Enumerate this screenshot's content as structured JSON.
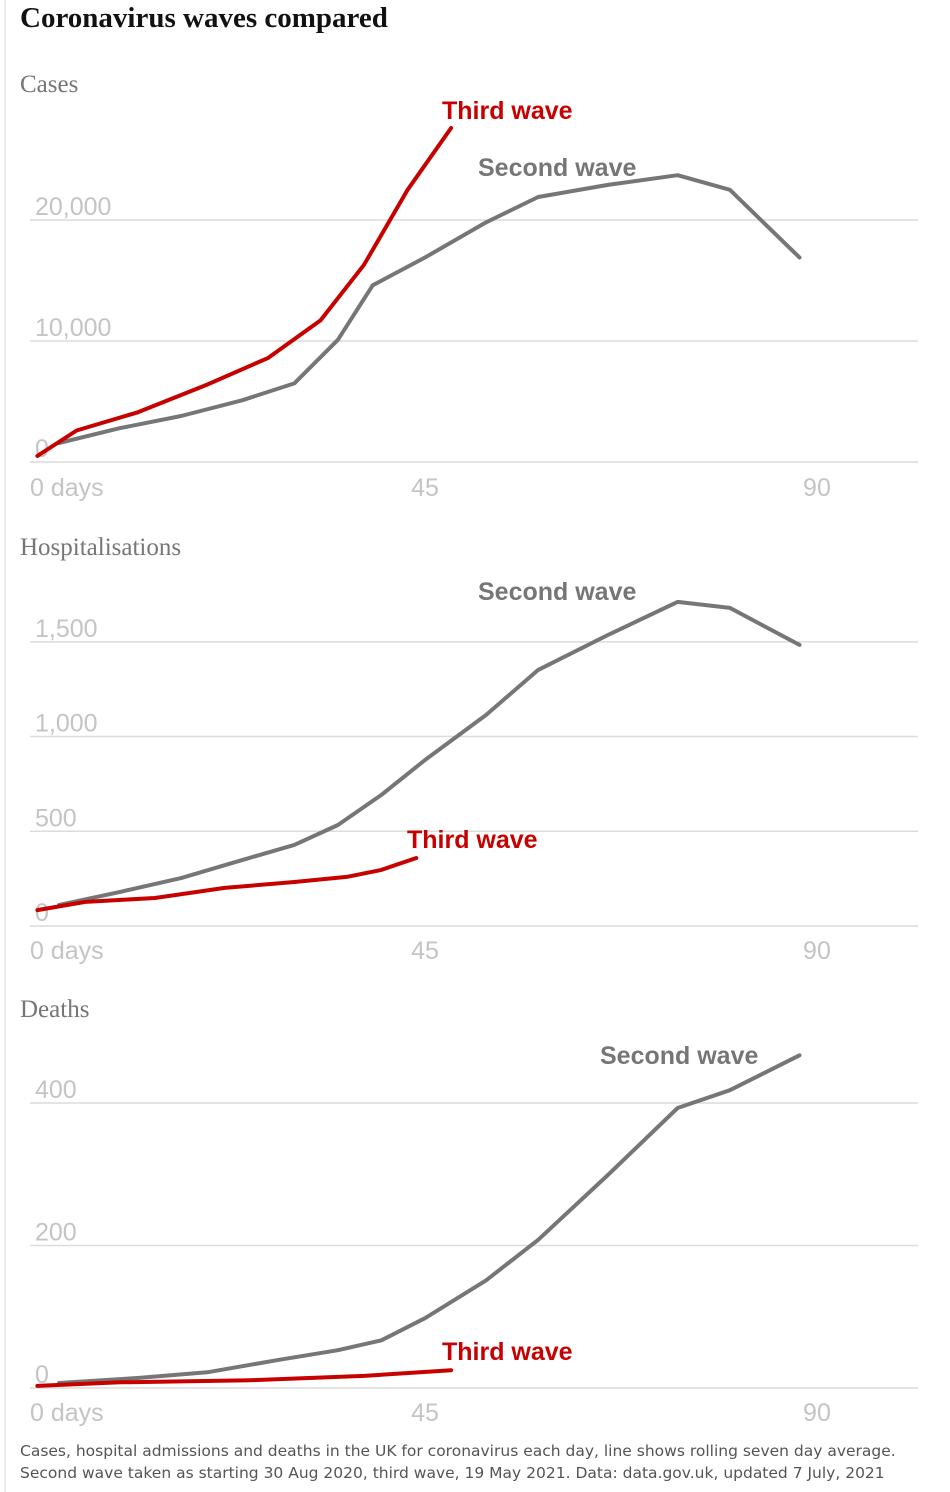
{
  "title": "Coronavirus waves compared",
  "note": "Cases, hospital admissions and deaths in the UK for coronavirus each day, line shows rolling seven day average. Second wave taken as starting 30 Aug 2020, third wave, 19 May 2021. Data: data.gov.uk, updated 7 July, 2021",
  "chart_data": [
    {
      "type": "line",
      "title": "Cases",
      "xlim": [
        0,
        101.6
      ],
      "xticks": [
        {
          "value": 0,
          "label": "0 days"
        },
        45,
        90
      ],
      "ylim": [
        0,
        30000
      ],
      "yticks": [
        0,
        {
          "value": 10000,
          "label": "10,000"
        },
        {
          "value": 20000,
          "label": "20,000"
        }
      ],
      "grid": true,
      "series": [
        {
          "name": "Second wave",
          "color": "#767676",
          "x": [
            3,
            10,
            17,
            24,
            30,
            35,
            39,
            45,
            52,
            58,
            66,
            74,
            80,
            88
          ],
          "values": [
            1570,
            2800,
            3800,
            5100,
            6500,
            10100,
            14600,
            16900,
            19800,
            21900,
            22900,
            23700,
            22500,
            16900
          ]
        },
        {
          "name": "Third wave",
          "color": "#c70000",
          "x": [
            0.5,
            5,
            12,
            20,
            27,
            33,
            38,
            43,
            48
          ],
          "values": [
            500,
            2600,
            4100,
            6400,
            8600,
            11700,
            16300,
            22500,
            27600
          ]
        }
      ]
    },
    {
      "type": "line",
      "title": "Hospitalisations",
      "xlim": [
        0,
        101.6
      ],
      "xticks": [
        {
          "value": 0,
          "label": "0 days"
        },
        45,
        90
      ],
      "ylim": [
        0,
        1800
      ],
      "yticks": [
        0,
        500,
        {
          "value": 1000,
          "label": "1,000"
        },
        {
          "value": 1500,
          "label": "1,500"
        }
      ],
      "grid": true,
      "series": [
        {
          "name": "Second wave",
          "color": "#767676",
          "x": [
            3,
            10,
            17,
            24,
            30,
            35,
            40,
            45,
            52,
            58,
            66,
            74,
            80,
            88
          ],
          "values": [
            111,
            180,
            253,
            348,
            428,
            533,
            692,
            876,
            1114,
            1352,
            1536,
            1711,
            1679,
            1484
          ]
        },
        {
          "name": "Third wave",
          "color": "#c70000",
          "x": [
            0.5,
            6,
            14,
            22,
            30,
            36,
            40,
            44
          ],
          "values": [
            84,
            127,
            148,
            201,
            232,
            259,
            296,
            359
          ]
        }
      ]
    },
    {
      "type": "line",
      "title": "Deaths",
      "xlim": [
        0,
        101.6
      ],
      "xticks": [
        {
          "value": 0,
          "label": "0 days"
        },
        45,
        90
      ],
      "ylim": [
        0,
        480
      ],
      "yticks": [
        0,
        200,
        400
      ],
      "grid": true,
      "series": [
        {
          "name": "Second wave",
          "color": "#767676",
          "x": [
            3,
            12,
            20,
            28,
            35,
            40,
            45,
            52,
            58,
            66,
            74,
            80,
            88
          ],
          "values": [
            7,
            14,
            22,
            39,
            53,
            67,
            98,
            151,
            208,
            299,
            393,
            418,
            467
          ]
        },
        {
          "name": "Third wave",
          "color": "#c70000",
          "x": [
            0.5,
            10,
            25,
            38,
            48
          ],
          "values": [
            3,
            8,
            11,
            17,
            25
          ]
        }
      ]
    }
  ]
}
